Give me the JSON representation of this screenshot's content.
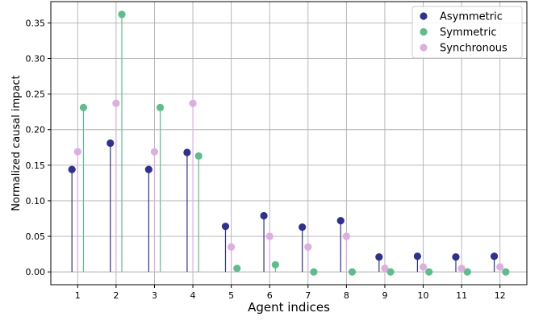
{
  "chart_data": {
    "type": "scatter",
    "subtype": "stem",
    "title": "",
    "xlabel": "Agent indices",
    "ylabel": "Normalized causal impact",
    "xlim": [
      0.3,
      12.7
    ],
    "ylim": [
      -0.018,
      0.38
    ],
    "x": [
      1,
      2,
      3,
      4,
      5,
      6,
      7,
      8,
      9,
      10,
      11,
      12
    ],
    "xticks": [
      "1",
      "2",
      "3",
      "4",
      "5",
      "6",
      "7",
      "8",
      "9",
      "10",
      "11",
      "12"
    ],
    "yticks": [
      0.0,
      0.05,
      0.1,
      0.15,
      0.2,
      0.25,
      0.3,
      0.35
    ],
    "ytick_labels": [
      "0.00",
      "0.05",
      "0.10",
      "0.15",
      "0.20",
      "0.25",
      "0.30",
      "0.35"
    ],
    "grid": true,
    "legend_position": "top-right",
    "series": [
      {
        "name": "Asymmetric",
        "color": "#2e3192",
        "offset": -0.15,
        "values": [
          0.144,
          0.181,
          0.144,
          0.168,
          0.064,
          0.079,
          0.063,
          0.072,
          0.021,
          0.022,
          0.021,
          0.022
        ]
      },
      {
        "name": "Symmetric",
        "color": "#5cbf8a",
        "offset": 0.15,
        "values": [
          0.231,
          0.362,
          0.231,
          0.163,
          0.005,
          0.01,
          0.0,
          0.0,
          0.0,
          0.0,
          0.0,
          0.0
        ]
      },
      {
        "name": "Synchronous",
        "color": "#deaee0",
        "offset": 0.0,
        "values": [
          0.169,
          0.237,
          0.169,
          0.237,
          0.035,
          0.05,
          0.035,
          0.05,
          0.005,
          0.007,
          0.005,
          0.007
        ]
      }
    ]
  }
}
